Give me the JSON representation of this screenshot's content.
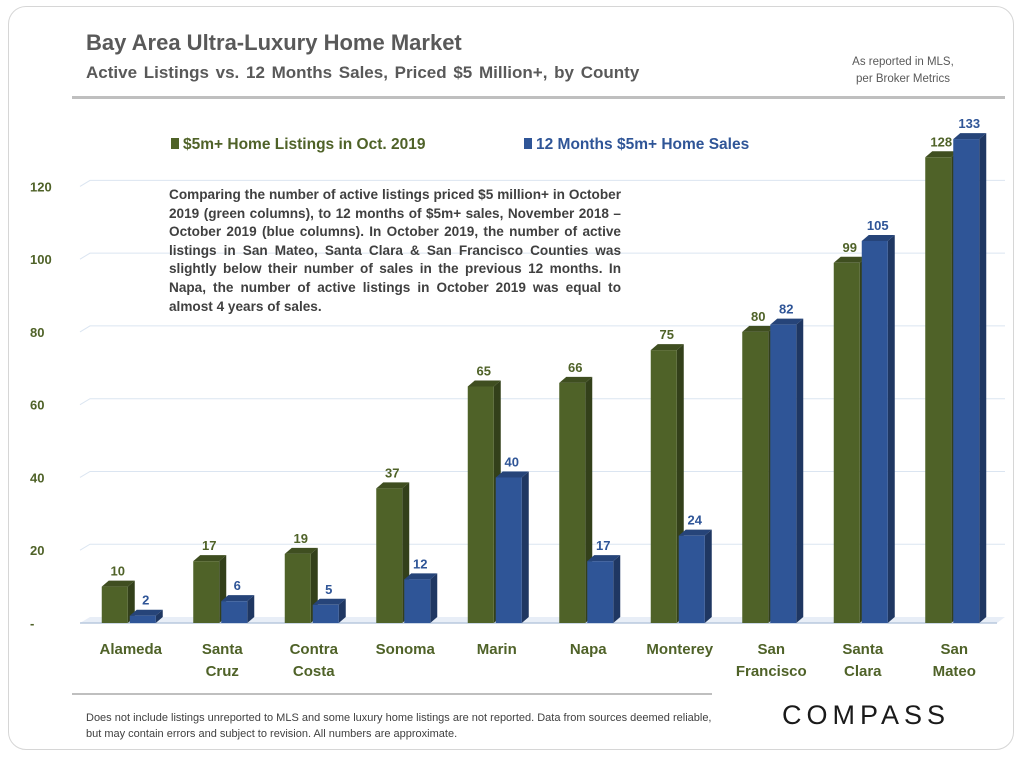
{
  "header": {
    "title": "Bay Area Ultra-Luxury Home Market",
    "subtitle": "Active Listings vs. 12 Months Sales, Priced $5 Million+, by County",
    "source_line1": "As reported in MLS,",
    "source_line2": "per Broker Metrics"
  },
  "annotation": "Comparing the number of active listings priced $5 million+ in October 2019 (green columns), to 12 months of $5m+ sales, November 2018 – October 2019 (blue columns). In October 2019, the number of active listings in San Mateo, Santa Clara & San Francisco Counties was slightly below their number of sales in the previous 12 months. In Napa, the number of active listings in October 2019 was equal to almost 4 years of sales.",
  "footer": {
    "disclaimer": "Does not include listings unreported to MLS and some luxury home listings are not reported. Data from sources deemed reliable, but may contain errors and subject to revision. All numbers are approximate.",
    "logo": "COMPASS"
  },
  "colors": {
    "green": "#4f6228",
    "blue": "#2f5597",
    "label_green": "#4f6228",
    "label_blue": "#2f5597",
    "axis_text": "#4f6228"
  },
  "chart_data": {
    "type": "bar",
    "title": "Bay Area Ultra-Luxury Home Market",
    "xlabel": "",
    "ylabel": "",
    "ylim": [
      0,
      130
    ],
    "yticks": [
      0,
      20,
      40,
      60,
      80,
      100,
      120
    ],
    "ytick_labels": [
      "-",
      "20",
      "40",
      "60",
      "80",
      "100",
      "120"
    ],
    "grid": true,
    "legend_position": "top",
    "categories": [
      [
        "Alameda"
      ],
      [
        "Santa",
        "Cruz"
      ],
      [
        "Contra",
        "Costa"
      ],
      [
        "Sonoma"
      ],
      [
        "Marin"
      ],
      [
        "Napa"
      ],
      [
        "Monterey"
      ],
      [
        "San",
        "Francisco"
      ],
      [
        "Santa",
        "Clara"
      ],
      [
        "San",
        "Mateo"
      ]
    ],
    "series": [
      {
        "name": "$5m+ Home Listings in Oct. 2019",
        "color": "#4f6228",
        "values": [
          10,
          17,
          19,
          37,
          65,
          66,
          75,
          80,
          99,
          128
        ]
      },
      {
        "name": "12 Months $5m+ Home Sales",
        "color": "#2f5597",
        "values": [
          2,
          6,
          5,
          12,
          40,
          17,
          24,
          82,
          105,
          133
        ]
      }
    ]
  }
}
